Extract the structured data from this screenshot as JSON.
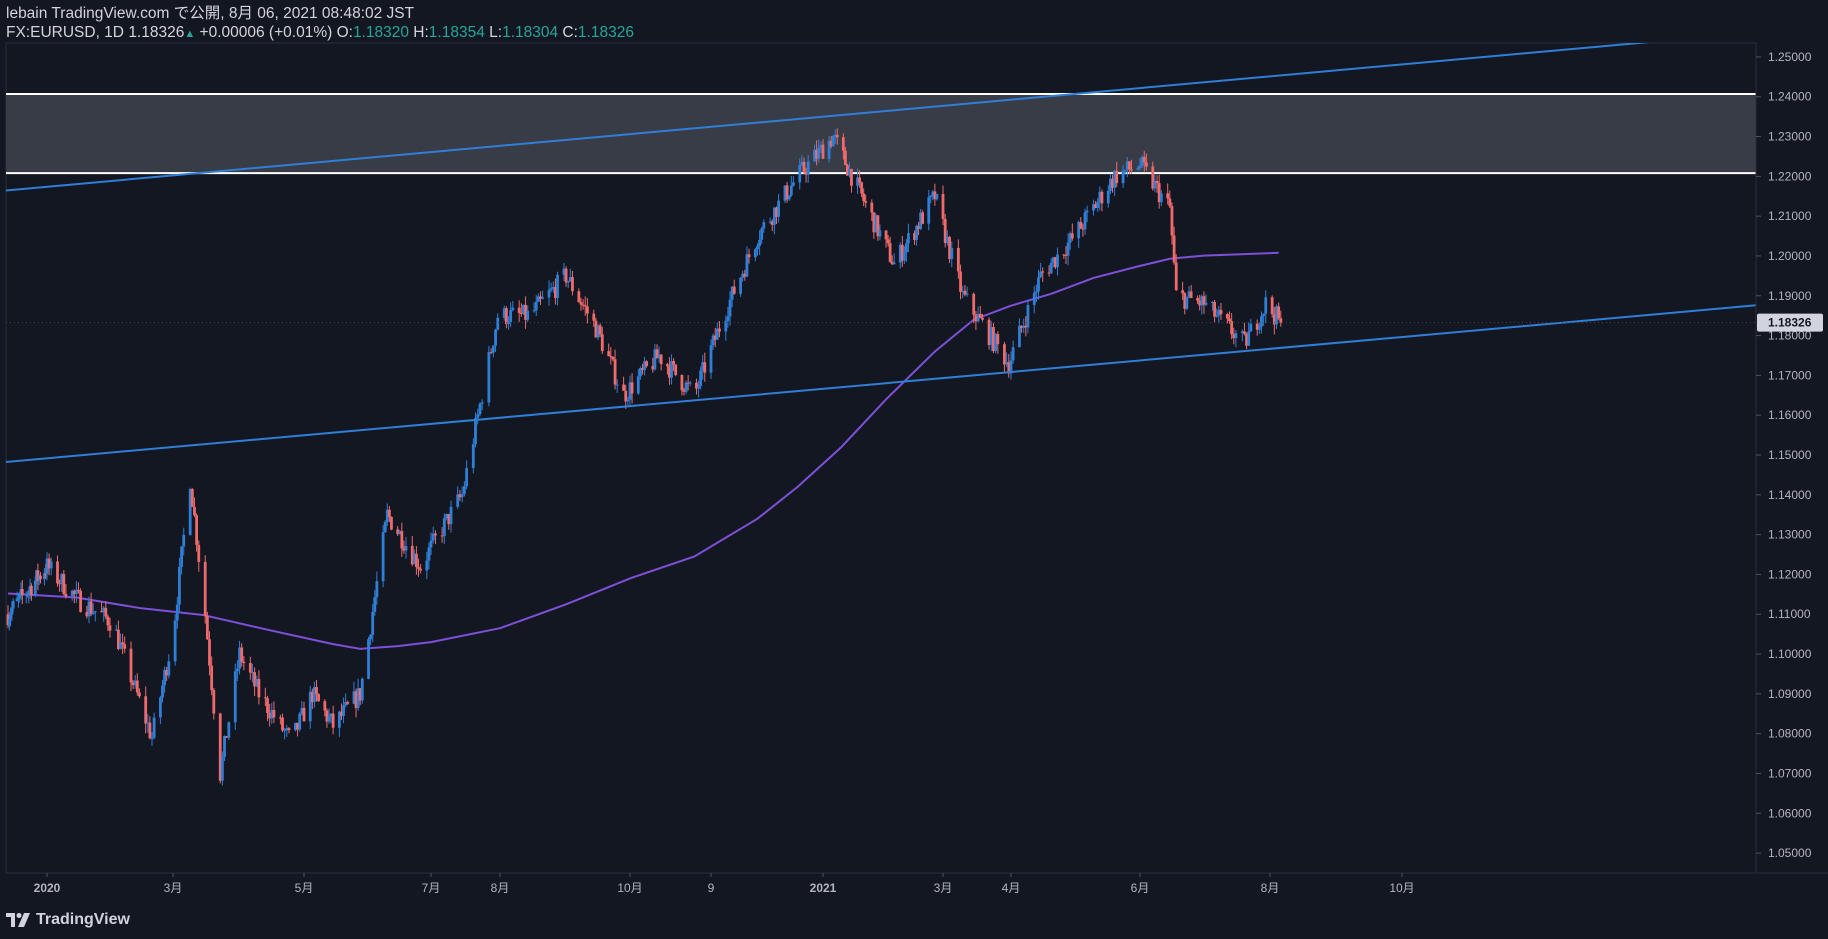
{
  "header": {
    "publish_line": "lebain TradingView.com で公開, 8月 06, 2021 08:48:02 JST",
    "symbol": "FX:EURUSD, 1D",
    "last_price": "1.18326",
    "change_arrow": "▲",
    "change": "+0.00006 (+0.01%)",
    "o_label": "O:",
    "o_value": "1.18320",
    "h_label": "H:",
    "h_value": "1.18354",
    "l_label": "L:",
    "l_value": "1.18304",
    "c_label": "C:",
    "c_value": "1.18326"
  },
  "footer": {
    "brand": "TradingView"
  },
  "colors": {
    "background": "#131722",
    "up": "#26a69a",
    "candle_up": "#2f7fd6",
    "candle_down": "#ef6b6b",
    "trendline": "#2f7fd6",
    "ma": "#7e4fd8",
    "zone_fill": "#3a3e4a",
    "zone_border": "#ffffff"
  },
  "chart_data": {
    "type": "candlestick",
    "symbol": "FX:EURUSD",
    "interval": "1D",
    "ylim": [
      1.045,
      1.2535
    ],
    "y_ticks": [
      "1.05000",
      "1.06000",
      "1.07000",
      "1.08000",
      "1.09000",
      "1.10000",
      "1.11000",
      "1.12000",
      "1.13000",
      "1.14000",
      "1.15000",
      "1.16000",
      "1.17000",
      "1.18000",
      "1.19000",
      "1.20000",
      "1.21000",
      "1.22000",
      "1.23000",
      "1.24000",
      "1.25000"
    ],
    "x_ticks": [
      {
        "label": "2020",
        "t": "2020-01-01"
      },
      {
        "label": "3月",
        "t": "2020-03-01"
      },
      {
        "label": "5月",
        "t": "2020-05-01"
      },
      {
        "label": "7月",
        "t": "2020-07-01"
      },
      {
        "label": "8月",
        "t": "2020-08-01"
      },
      {
        "label": "10月",
        "t": "2020-10-01"
      },
      {
        "label": "9",
        "t": "2020-11-09"
      },
      {
        "label": "2021",
        "t": "2021-01-01"
      },
      {
        "label": "3月",
        "t": "2021-03-01"
      },
      {
        "label": "4月",
        "t": "2021-04-01"
      },
      {
        "label": "6月",
        "t": "2021-06-01"
      },
      {
        "label": "8月",
        "t": "2021-08-01"
      },
      {
        "label": "10月",
        "t": "2021-10-01"
      }
    ],
    "last_price_label": "1.18326",
    "resistance_zone": {
      "low": 1.2208,
      "high": 1.2407
    },
    "trendlines": [
      {
        "name": "upper channel",
        "from": {
          "t": "2019-12-02",
          "price": 1.2165
        },
        "to": {
          "t": "2021-11-26",
          "price": 1.2508
        }
      },
      {
        "name": "lower channel",
        "from": {
          "t": "2019-12-02",
          "price": 1.1483
        },
        "to": {
          "t": "2021-11-26",
          "price": 1.1823
        }
      }
    ],
    "moving_average": [
      [
        "2019-12-02",
        1.1152
      ],
      [
        "2020-01-15",
        1.1142
      ],
      [
        "2020-02-15",
        1.1115
      ],
      [
        "2020-03-15",
        1.1098
      ],
      [
        "2020-04-15",
        1.106
      ],
      [
        "2020-05-15",
        1.1025
      ],
      [
        "2020-05-28",
        1.1013
      ],
      [
        "2020-06-15",
        1.102
      ],
      [
        "2020-07-01",
        1.103
      ],
      [
        "2020-08-01",
        1.1065
      ],
      [
        "2020-09-01",
        1.1125
      ],
      [
        "2020-10-01",
        1.119
      ],
      [
        "2020-11-01",
        1.1245
      ],
      [
        "2020-12-01",
        1.134
      ],
      [
        "2020-12-20",
        1.142
      ],
      [
        "2021-01-10",
        1.152
      ],
      [
        "2021-02-01",
        1.164
      ],
      [
        "2021-02-25",
        1.176
      ],
      [
        "2021-03-15",
        1.184
      ],
      [
        "2021-04-01",
        1.1875
      ],
      [
        "2021-04-20",
        1.1905
      ],
      [
        "2021-05-10",
        1.1945
      ],
      [
        "2021-06-01",
        1.1975
      ],
      [
        "2021-06-15",
        1.1993
      ],
      [
        "2021-07-01",
        1.2001
      ],
      [
        "2021-08-05",
        1.2008
      ]
    ],
    "price_path": [
      [
        "2019-12-02",
        1.11
      ],
      [
        "2020-01-01",
        1.122
      ],
      [
        "2020-01-15",
        1.114
      ],
      [
        "2020-02-01",
        1.108
      ],
      [
        "2020-02-20",
        1.079
      ],
      [
        "2020-03-01",
        1.105
      ],
      [
        "2020-03-09",
        1.144
      ],
      [
        "2020-03-16",
        1.11
      ],
      [
        "2020-03-23",
        1.07
      ],
      [
        "2020-04-01",
        1.1
      ],
      [
        "2020-04-10",
        1.09
      ],
      [
        "2020-04-25",
        1.078
      ],
      [
        "2020-05-05",
        1.09
      ],
      [
        "2020-05-15",
        1.082
      ],
      [
        "2020-05-28",
        1.09
      ],
      [
        "2020-06-10",
        1.135
      ],
      [
        "2020-06-26",
        1.122
      ],
      [
        "2020-07-15",
        1.14
      ],
      [
        "2020-07-31",
        1.185
      ],
      [
        "2020-08-15",
        1.185
      ],
      [
        "2020-09-01",
        1.195
      ],
      [
        "2020-09-15",
        1.182
      ],
      [
        "2020-09-28",
        1.165
      ],
      [
        "2020-10-15",
        1.175
      ],
      [
        "2020-11-01",
        1.165
      ],
      [
        "2020-11-15",
        1.185
      ],
      [
        "2020-12-01",
        1.205
      ],
      [
        "2020-12-20",
        1.22
      ],
      [
        "2021-01-06",
        1.23
      ],
      [
        "2021-01-20",
        1.215
      ],
      [
        "2021-02-05",
        1.198
      ],
      [
        "2021-02-25",
        1.215
      ],
      [
        "2021-03-10",
        1.19
      ],
      [
        "2021-03-31",
        1.173
      ],
      [
        "2021-04-15",
        1.195
      ],
      [
        "2021-05-01",
        1.205
      ],
      [
        "2021-05-20",
        1.22
      ],
      [
        "2021-06-01",
        1.223
      ],
      [
        "2021-06-15",
        1.212
      ],
      [
        "2021-06-18",
        1.19
      ],
      [
        "2021-07-01",
        1.188
      ],
      [
        "2021-07-20",
        1.178
      ],
      [
        "2021-07-30",
        1.188
      ],
      [
        "2021-08-06",
        1.18326
      ]
    ]
  }
}
